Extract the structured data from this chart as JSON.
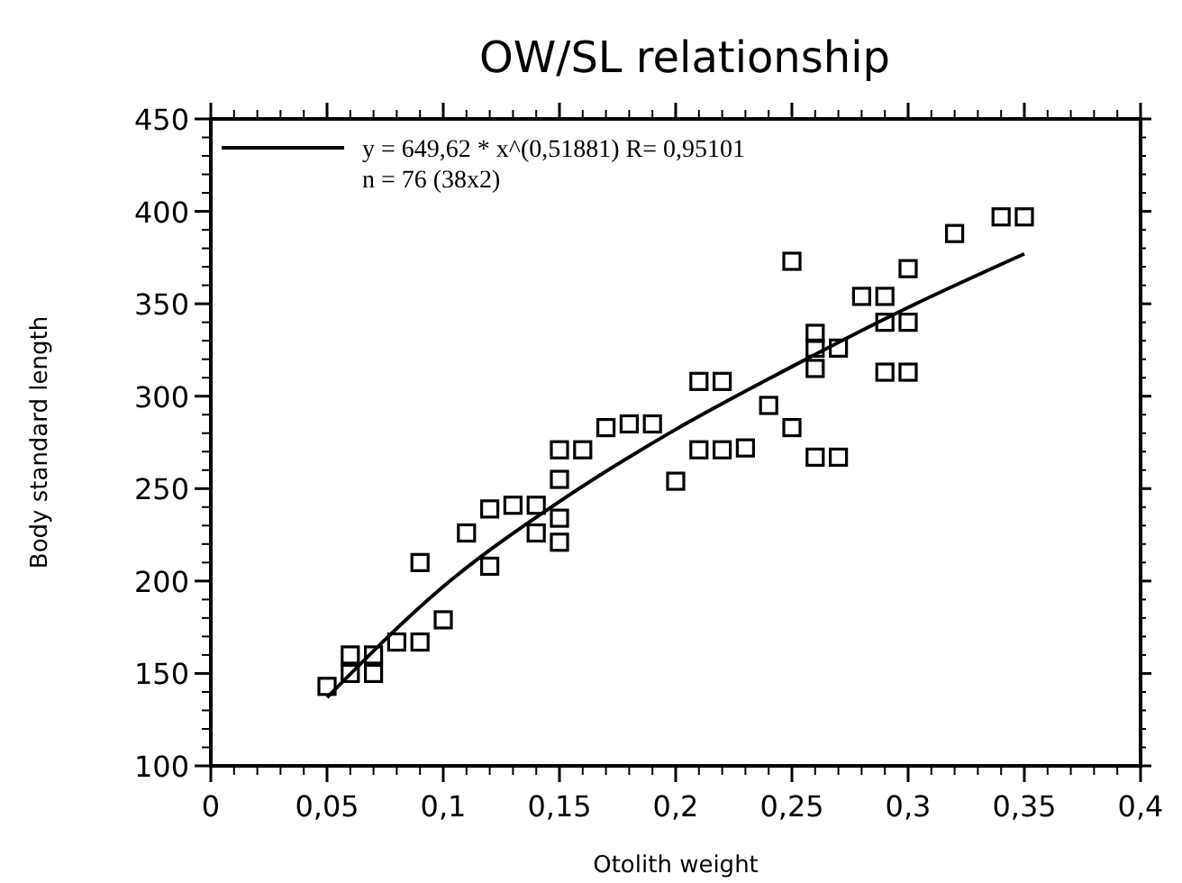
{
  "chart_data": {
    "type": "scatter",
    "title": "OW/SL   relationship",
    "xlabel": "Otolith weight",
    "ylabel": "Body standard length",
    "xlim": [
      0,
      0.4
    ],
    "ylim": [
      100,
      450
    ],
    "xticks": [
      0,
      {
        "value": 0.05,
        "label": "0,05"
      },
      {
        "value": 0.1,
        "label": "0,1"
      },
      {
        "value": 0.15,
        "label": "0,15"
      },
      {
        "value": 0.2,
        "label": "0,2"
      },
      {
        "value": 0.25,
        "label": "0,25"
      },
      {
        "value": 0.3,
        "label": "0,3"
      },
      {
        "value": 0.35,
        "label": "0,35"
      },
      {
        "value": 0.4,
        "label": "0,4"
      }
    ],
    "yticks": [
      100,
      150,
      200,
      250,
      300,
      350,
      400,
      450
    ],
    "grid": false,
    "legend": "top left",
    "marker": "square",
    "annotations": [
      "n = 76 (38x2)"
    ],
    "series": [
      {
        "color": "#000000",
        "x": [
          0.05,
          0.06,
          0.06,
          0.07,
          0.07,
          0.08,
          0.09,
          0.1,
          0.09,
          0.12,
          0.11,
          0.12,
          0.13,
          0.14,
          0.14,
          0.15,
          0.15,
          0.15,
          0.15,
          0.16,
          0.17,
          0.18,
          0.19,
          0.2,
          0.21,
          0.22,
          0.21,
          0.22,
          0.23,
          0.24,
          0.25,
          0.25,
          0.26,
          0.26,
          0.26,
          0.27,
          0.26,
          0.27,
          0.28,
          0.29,
          0.29,
          0.3,
          0.29,
          0.3,
          0.3,
          0.32,
          0.34,
          0.35
        ],
        "values": [
          143,
          160,
          150,
          160,
          150,
          167,
          167,
          179,
          210,
          208,
          226,
          239,
          241,
          241,
          226,
          234,
          221,
          255,
          271,
          271,
          283,
          285,
          285,
          254,
          308,
          308,
          271,
          271,
          272,
          295,
          283,
          373,
          334,
          326,
          315,
          326,
          267,
          267,
          354,
          354,
          340,
          340,
          313,
          313,
          369,
          388,
          397,
          397
        ]
      },
      {
        "type": "line",
        "name": "y = 649,62 * x^(0,51881) R= 0,95101",
        "color": "#000000",
        "marker": "none",
        "line_style": "solid",
        "x": [
          0.05,
          0.1,
          0.15,
          0.2,
          0.25,
          0.3,
          0.35
        ],
        "values": [
          137,
          197,
          243,
          282,
          316,
          348,
          377
        ]
      }
    ]
  }
}
